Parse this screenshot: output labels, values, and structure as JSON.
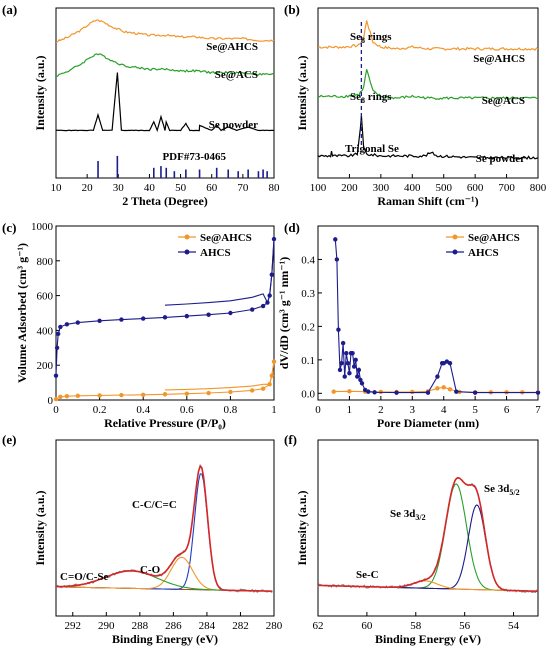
{
  "panels": {
    "a": {
      "letter": "(a)"
    },
    "b": {
      "letter": "(b)"
    },
    "c": {
      "letter": "(c)"
    },
    "d": {
      "letter": "(d)"
    },
    "e": {
      "letter": "(e)"
    },
    "f": {
      "letter": "(f)"
    }
  },
  "colors": {
    "orange": "#f2962b",
    "green": "#2aa02a",
    "black": "#000000",
    "navy": "#1c1c8c",
    "red": "#d62728",
    "gray": "#888888",
    "brown": "#a0522d",
    "blue": "#1f3fbf"
  },
  "chart_data": [
    {
      "id": "a",
      "type": "line",
      "xlabel": "2 Theta (Degree)",
      "ylabel": "Intensity (a.u.)",
      "xlim": [
        10,
        80
      ],
      "xticks": [
        10,
        20,
        30,
        40,
        50,
        60,
        70,
        80
      ],
      "series": [
        {
          "name": "Se@AHCS",
          "color": "#f2962b",
          "x": [
            10,
            14,
            18,
            21,
            23,
            25,
            28,
            32,
            36,
            40,
            45,
            50,
            55,
            60,
            65,
            70,
            75,
            80
          ],
          "y": [
            0.8,
            0.83,
            0.87,
            0.91,
            0.93,
            0.92,
            0.89,
            0.86,
            0.85,
            0.84,
            0.84,
            0.83,
            0.83,
            0.82,
            0.82,
            0.82,
            0.81,
            0.81
          ]
        },
        {
          "name": "Se@ACS",
          "color": "#2aa02a",
          "x": [
            10,
            14,
            18,
            21,
            23,
            25,
            28,
            32,
            36,
            40,
            45,
            50,
            55,
            60,
            65,
            70,
            75,
            80
          ],
          "y": [
            0.6,
            0.63,
            0.67,
            0.71,
            0.73,
            0.72,
            0.69,
            0.66,
            0.65,
            0.64,
            0.64,
            0.63,
            0.63,
            0.62,
            0.62,
            0.62,
            0.61,
            0.61
          ]
        },
        {
          "name": "Se powder",
          "color": "#000000",
          "x": [
            10,
            20,
            22,
            23.5,
            25,
            28,
            29.7,
            31,
            35,
            40,
            41.4,
            42.5,
            43.7,
            45,
            45.4,
            46.5,
            50,
            51.7,
            53,
            56,
            56.1,
            60,
            61.6,
            63,
            65.3,
            68,
            71.7,
            75,
            80
          ],
          "y": [
            0.28,
            0.28,
            0.28,
            0.37,
            0.28,
            0.28,
            0.62,
            0.28,
            0.28,
            0.28,
            0.33,
            0.28,
            0.36,
            0.28,
            0.33,
            0.28,
            0.28,
            0.32,
            0.28,
            0.28,
            0.31,
            0.28,
            0.31,
            0.28,
            0.3,
            0.28,
            0.3,
            0.28,
            0.28
          ]
        },
        {
          "name": "PDF#73-0465",
          "color": "#1c1c8c",
          "type": "sticks",
          "x": [
            23.5,
            29.7,
            41.4,
            43.7,
            45.4,
            48.0,
            51.7,
            56.1,
            61.6,
            65.3,
            68.5,
            71.7,
            75.0,
            76.5,
            77.8
          ],
          "h": [
            0.1,
            0.13,
            0.06,
            0.07,
            0.06,
            0.04,
            0.05,
            0.05,
            0.06,
            0.05,
            0.04,
            0.05,
            0.04,
            0.05,
            0.04
          ]
        }
      ]
    },
    {
      "id": "b",
      "type": "line",
      "xlabel": "Raman Shift (cm⁻¹)",
      "ylabel": "Intensity (a.u.)",
      "xlim": [
        100,
        800
      ],
      "xticks": [
        100,
        200,
        300,
        400,
        500,
        600,
        700,
        800
      ],
      "annotations": [
        "Se8 rings",
        "Se8 rings",
        "Trigonal Se"
      ],
      "series": [
        {
          "name": "Se@AHCS",
          "color": "#f2962b",
          "x": [
            100,
            180,
            230,
            245,
            255,
            262,
            275,
            300,
            350,
            400,
            450,
            500,
            600,
            700,
            800
          ],
          "y": [
            0.77,
            0.77,
            0.78,
            0.82,
            0.93,
            0.88,
            0.8,
            0.77,
            0.76,
            0.77,
            0.76,
            0.76,
            0.76,
            0.76,
            0.76
          ]
        },
        {
          "name": "Se@ACS",
          "color": "#2aa02a",
          "x": [
            100,
            180,
            230,
            245,
            255,
            262,
            275,
            300,
            350,
            400,
            450,
            500,
            600,
            700,
            800
          ],
          "y": [
            0.48,
            0.48,
            0.49,
            0.53,
            0.64,
            0.59,
            0.51,
            0.48,
            0.47,
            0.48,
            0.47,
            0.47,
            0.47,
            0.47,
            0.47
          ]
        },
        {
          "name": "Se powder",
          "color": "#000000",
          "x": [
            100,
            140,
            143,
            146,
            200,
            225,
            235,
            238,
            245,
            255,
            300,
            440,
            460,
            480,
            600,
            800
          ],
          "y": [
            0.13,
            0.13,
            0.16,
            0.13,
            0.13,
            0.14,
            0.3,
            0.36,
            0.18,
            0.14,
            0.13,
            0.13,
            0.15,
            0.13,
            0.12,
            0.12
          ]
        }
      ]
    },
    {
      "id": "c",
      "type": "line",
      "xlabel": "Relative Pressure (P/P₀)",
      "ylabel": "Volume Adsorbed (cm³ g⁻¹)",
      "xlim": [
        0.0,
        1.0
      ],
      "ylim": [
        0,
        1000
      ],
      "xticks": [
        0.0,
        0.2,
        0.4,
        0.6,
        0.8,
        1.0
      ],
      "yticks": [
        0,
        200,
        400,
        600,
        800,
        1000
      ],
      "series": [
        {
          "name": "Se@AHCS",
          "color": "#f2962b",
          "x": [
            0.0,
            0.02,
            0.05,
            0.1,
            0.2,
            0.3,
            0.4,
            0.5,
            0.6,
            0.7,
            0.8,
            0.9,
            0.95,
            0.98,
            0.99,
            1.0
          ],
          "y": [
            5,
            18,
            22,
            24,
            26,
            28,
            30,
            33,
            36,
            40,
            46,
            55,
            65,
            90,
            140,
            220
          ]
        },
        {
          "name": "AHCS",
          "color": "#1c1c8c",
          "x": [
            0.0,
            0.005,
            0.01,
            0.02,
            0.05,
            0.1,
            0.2,
            0.3,
            0.4,
            0.5,
            0.6,
            0.7,
            0.8,
            0.9,
            0.95,
            0.97,
            0.98,
            0.99,
            1.0
          ],
          "y": [
            140,
            300,
            380,
            420,
            435,
            445,
            455,
            462,
            468,
            475,
            482,
            490,
            500,
            520,
            540,
            560,
            600,
            720,
            925
          ]
        }
      ]
    },
    {
      "id": "d",
      "type": "line",
      "xlabel": "Pore Diameter (nm)",
      "ylabel": "dV/dD (cm³ g⁻¹ nm⁻¹)",
      "xlim": [
        0,
        7
      ],
      "ylim": [
        -0.02,
        0.5
      ],
      "xticks": [
        0,
        1,
        2,
        3,
        4,
        5,
        6,
        7
      ],
      "yticks": [
        0.0,
        0.1,
        0.2,
        0.3,
        0.4
      ],
      "series": [
        {
          "name": "Se@AHCS",
          "color": "#f2962b",
          "x": [
            0.5,
            1.0,
            1.5,
            2.0,
            2.5,
            3.0,
            3.5,
            3.8,
            4.0,
            4.2,
            4.5,
            5.0,
            5.5,
            6.0,
            6.5,
            7.0
          ],
          "y": [
            0.005,
            0.006,
            0.005,
            0.004,
            0.004,
            0.004,
            0.006,
            0.015,
            0.018,
            0.012,
            0.004,
            0.003,
            0.003,
            0.003,
            0.003,
            0.003
          ]
        },
        {
          "name": "AHCS",
          "color": "#1c1c8c",
          "x": [
            0.55,
            0.6,
            0.65,
            0.7,
            0.75,
            0.8,
            0.85,
            0.9,
            0.95,
            1.0,
            1.05,
            1.1,
            1.15,
            1.2,
            1.25,
            1.3,
            1.35,
            1.4,
            1.5,
            1.6,
            1.8,
            2.5,
            3.5,
            3.8,
            3.95,
            4.0,
            4.1,
            4.2,
            4.4,
            5.0,
            7.0
          ],
          "y": [
            0.46,
            0.4,
            0.19,
            0.07,
            0.09,
            0.15,
            0.05,
            0.12,
            0.09,
            0.06,
            0.12,
            0.12,
            0.08,
            0.1,
            0.05,
            0.07,
            0.04,
            0.03,
            0.01,
            0.005,
            0.003,
            0.002,
            0.002,
            0.05,
            0.09,
            0.09,
            0.095,
            0.09,
            0.005,
            0.002,
            0.002
          ]
        }
      ]
    },
    {
      "id": "e",
      "type": "line",
      "xlabel": "Binding Energy (eV)",
      "ylabel": "Intensity (a.u.)",
      "xlim": [
        293,
        280
      ],
      "xticks": [
        292,
        290,
        288,
        286,
        284,
        282,
        280
      ],
      "annotations": [
        "C-C/C=C",
        "C-O",
        "C=O/C-Se"
      ]
    },
    {
      "id": "f",
      "type": "line",
      "xlabel": "Binding Energy (eV)",
      "ylabel": "Intensity (a.u.)",
      "xlim": [
        62,
        53
      ],
      "xticks": [
        62,
        60,
        58,
        56,
        54
      ],
      "annotations": [
        "Se 3d3/2",
        "Se 3d5/2",
        "Se-C"
      ]
    }
  ]
}
